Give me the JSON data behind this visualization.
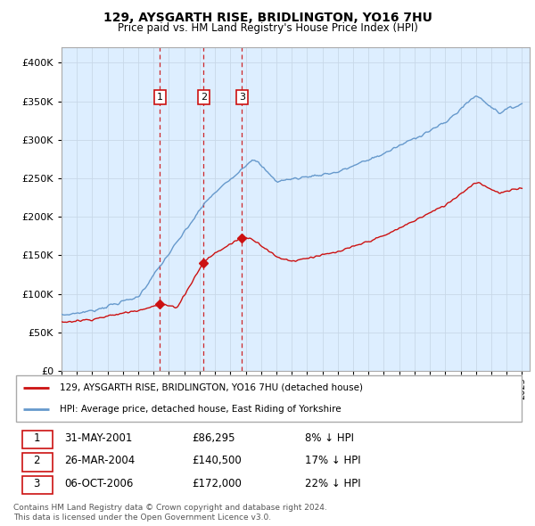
{
  "title1": "129, AYSGARTH RISE, BRIDLINGTON, YO16 7HU",
  "title2": "Price paid vs. HM Land Registry's House Price Index (HPI)",
  "background_color": "#ffffff",
  "plot_bg_color": "#ddeeff",
  "grid_color": "#c8d8e8",
  "hpi_color": "#6699cc",
  "price_color": "#cc1111",
  "vline_color": "#cc1111",
  "ylim": [
    0,
    420000
  ],
  "yticks": [
    0,
    50000,
    100000,
    150000,
    200000,
    250000,
    300000,
    350000,
    400000
  ],
  "xlim": [
    1995,
    2025.5
  ],
  "sale_year_nums": [
    2001.417,
    2004.25,
    2006.75
  ],
  "sale_prices": [
    86295,
    140500,
    172000
  ],
  "sale_labels": [
    "1",
    "2",
    "3"
  ],
  "legend_entries": [
    "129, AYSGARTH RISE, BRIDLINGTON, YO16 7HU (detached house)",
    "HPI: Average price, detached house, East Riding of Yorkshire"
  ],
  "table_data": [
    [
      "1",
      "31-MAY-2001",
      "£86,295",
      "8% ↓ HPI"
    ],
    [
      "2",
      "26-MAR-2004",
      "£140,500",
      "17% ↓ HPI"
    ],
    [
      "3",
      "06-OCT-2006",
      "£172,000",
      "22% ↓ HPI"
    ]
  ],
  "footnote1": "Contains HM Land Registry data © Crown copyright and database right 2024.",
  "footnote2": "This data is licensed under the Open Government Licence v3.0."
}
